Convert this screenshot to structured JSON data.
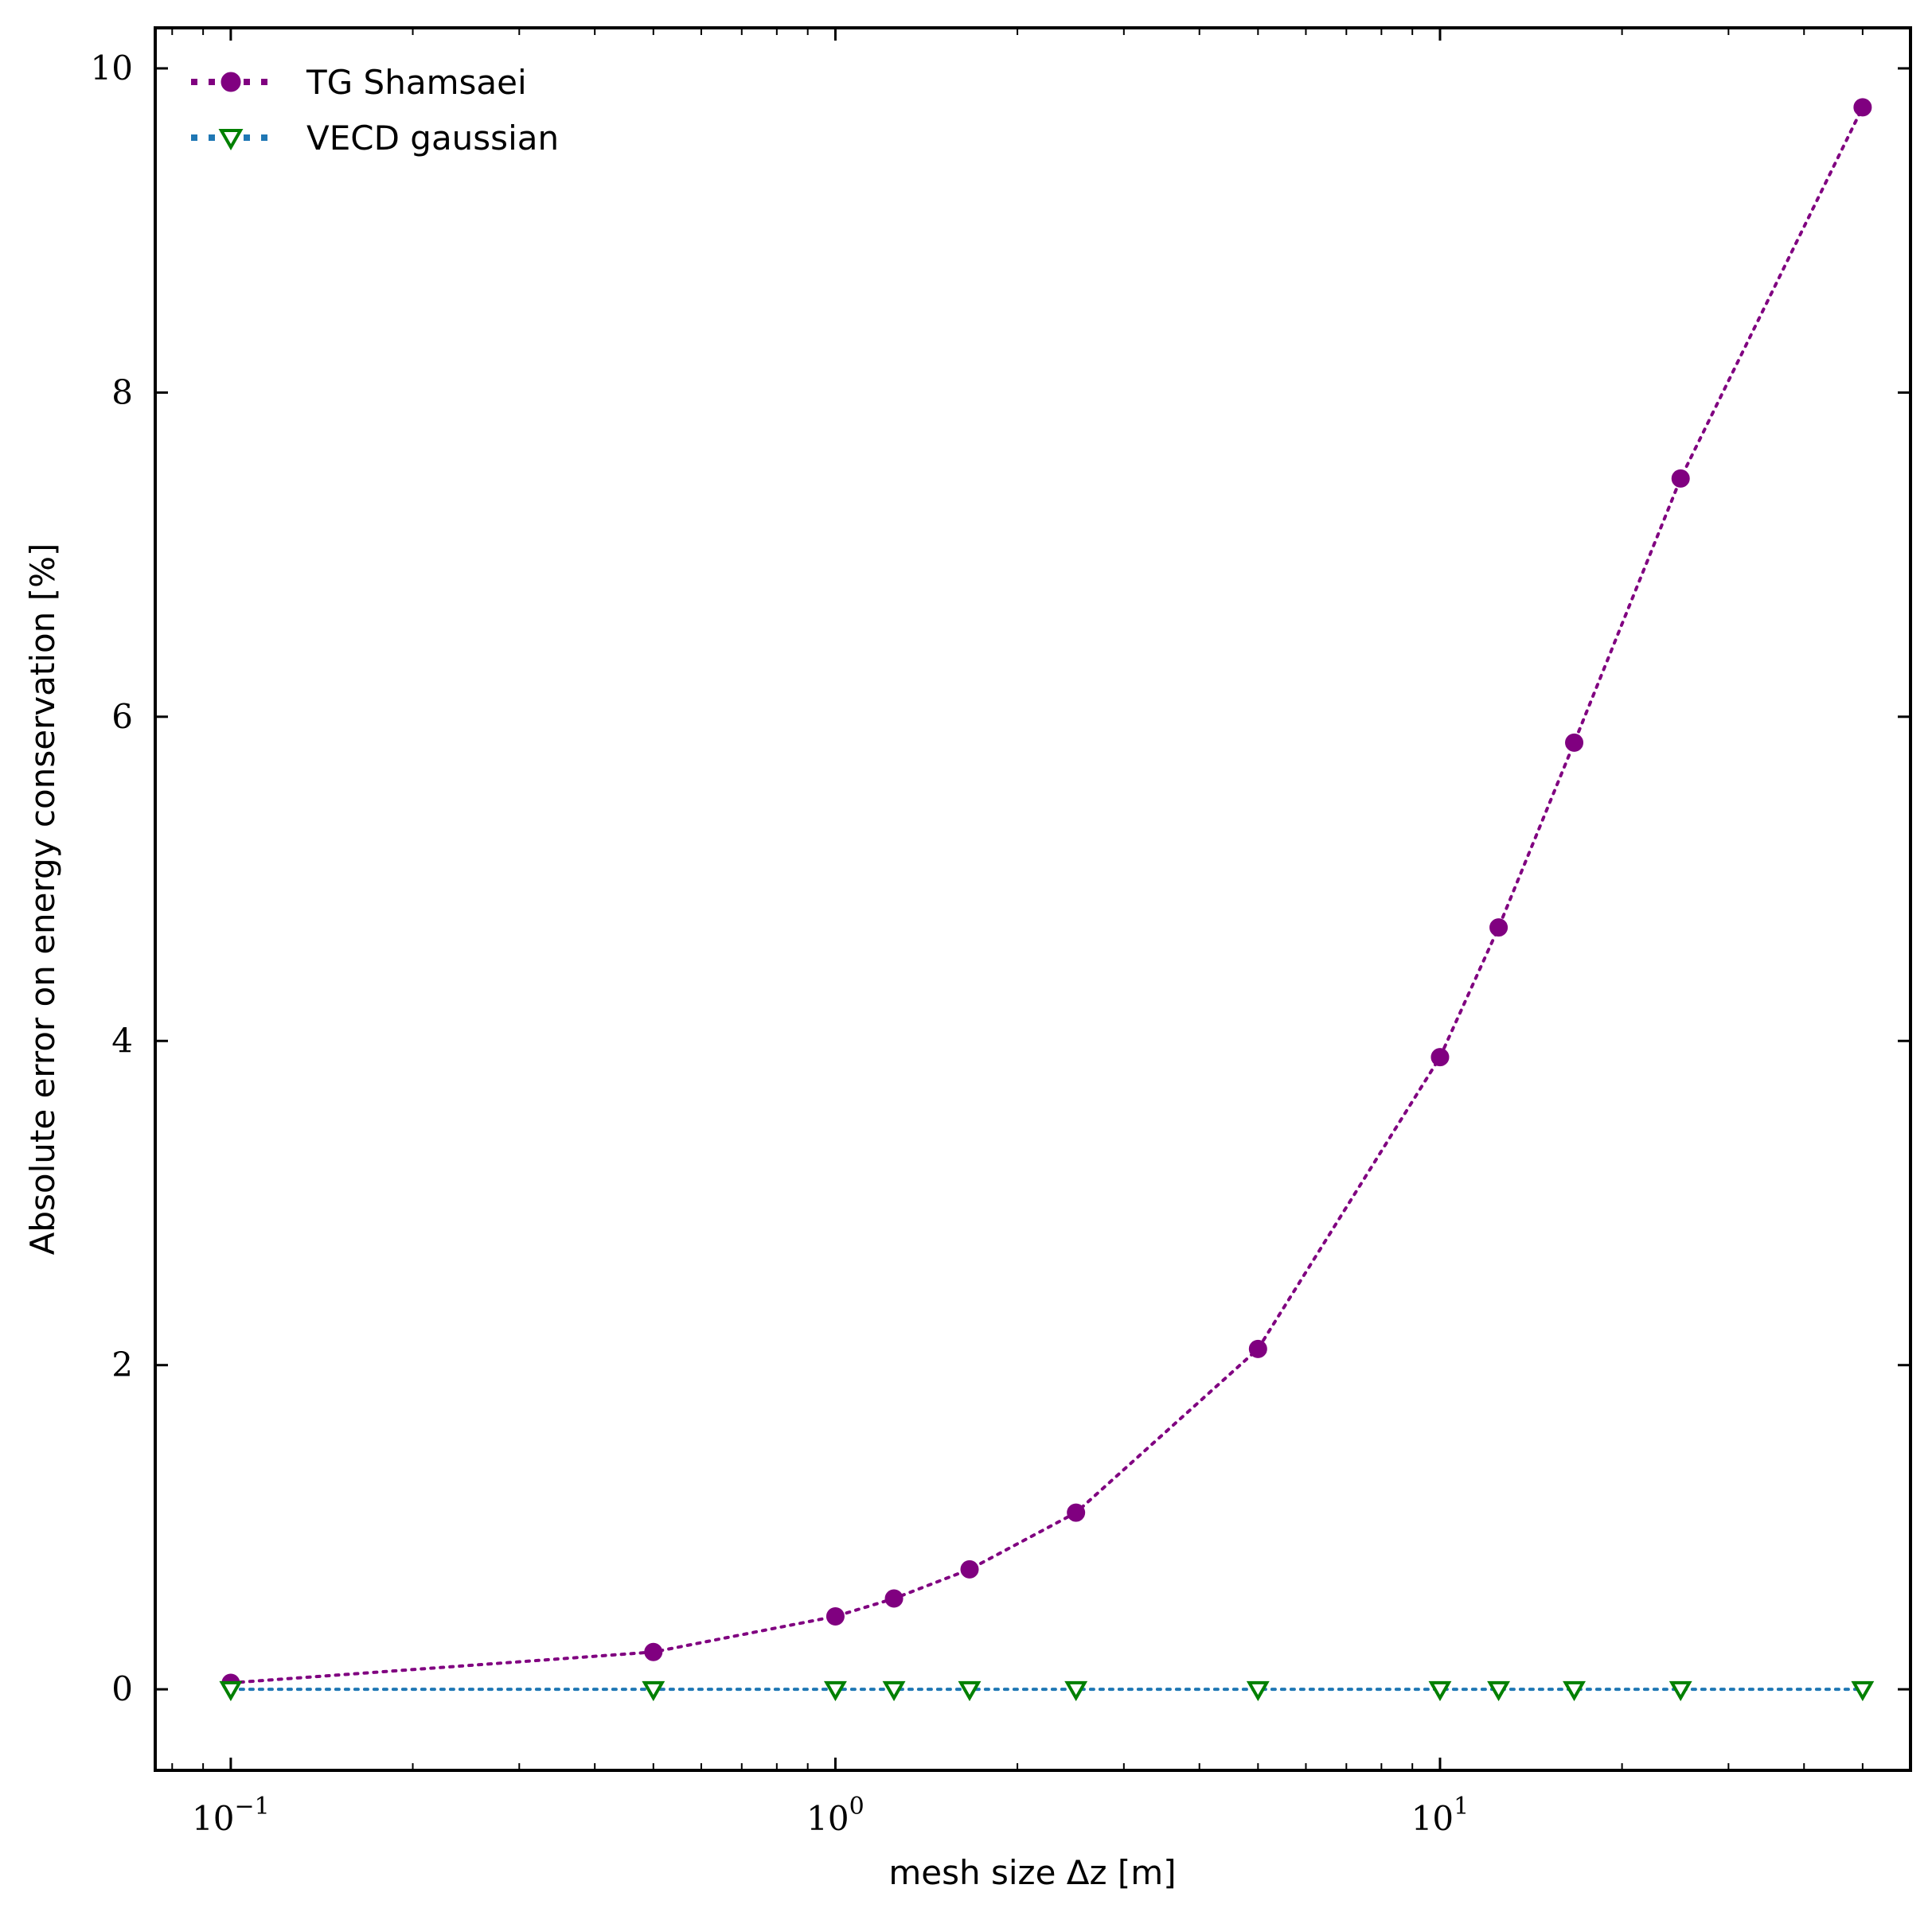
{
  "chart_data": {
    "type": "line",
    "title": "",
    "xlabel": "mesh size Δz [m]",
    "ylabel": "Absolute error on energy conservation [%]",
    "xscale": "log",
    "xlim": [
      0.075,
      60
    ],
    "ylim": [
      -0.5,
      10.25
    ],
    "grid": false,
    "legend_position": "top-left",
    "x_ticks": [
      {
        "value": 0.1,
        "base": "10",
        "exp": "−1"
      },
      {
        "value": 1,
        "base": "10",
        "exp": "0"
      },
      {
        "value": 10,
        "base": "10",
        "exp": "1"
      }
    ],
    "y_ticks": [
      {
        "value": 0,
        "label": "0"
      },
      {
        "value": 2,
        "label": "2"
      },
      {
        "value": 4,
        "label": "4"
      },
      {
        "value": 6,
        "label": "6"
      },
      {
        "value": 8,
        "label": "8"
      },
      {
        "value": 10,
        "label": "10"
      }
    ],
    "series": [
      {
        "name": "TG Shamsaei",
        "line_color": "#800080",
        "marker_color": "#800080",
        "marker": "circle",
        "line_style": "dotted",
        "x": [
          0.1,
          0.5,
          1,
          1.25,
          1.667,
          2.5,
          5,
          10,
          12.5,
          16.67,
          25,
          50
        ],
        "y": [
          0.04,
          0.23,
          0.45,
          0.56,
          0.74,
          1.09,
          2.1,
          3.9,
          4.7,
          5.84,
          7.47,
          9.76
        ]
      },
      {
        "name": "VECD gaussian",
        "line_color": "#1f77b4",
        "marker_color": "#008000",
        "marker": "triangle-down-open",
        "line_style": "dotted",
        "x": [
          0.1,
          0.5,
          1,
          1.25,
          1.667,
          2.5,
          5,
          10,
          12.5,
          16.67,
          25,
          50
        ],
        "y": [
          0,
          0,
          0,
          0,
          0,
          0,
          0,
          0,
          0,
          0,
          0,
          0
        ]
      }
    ]
  }
}
